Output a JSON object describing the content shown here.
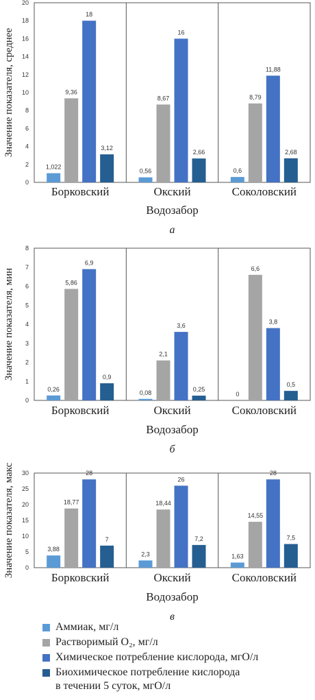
{
  "colors": [
    "#5b9bd5",
    "#a5a5a5",
    "#4472c4",
    "#255e91"
  ],
  "legend": [
    {
      "label": "Аммиак, мг/л",
      "color": "#5b9bd5"
    },
    {
      "label": "Растворимый O₂, мг/л",
      "color": "#a5a5a5"
    },
    {
      "label": "Химическое потребление кислорода, мгО/л",
      "color": "#4472c4"
    },
    {
      "label": "Биохимическое потребление кислорода\nв течении 5 суток, мгО/л",
      "color": "#255e91"
    }
  ],
  "chart_data": [
    {
      "type": "bar",
      "panel_letter": "а",
      "ylabel": "Значение показателя, среднее",
      "xlabel": "Водозабор",
      "categories": [
        "Борковский",
        "Окский",
        "Соколовский"
      ],
      "ylim": [
        0,
        20
      ],
      "yticks": [
        0,
        2,
        4,
        6,
        8,
        10,
        12,
        14,
        16,
        18,
        20
      ],
      "grid": false,
      "series": [
        {
          "values": [
            1.022,
            0.56,
            0.6
          ],
          "labels": [
            "1,022",
            "0,56",
            "0,6"
          ]
        },
        {
          "values": [
            9.36,
            8.67,
            8.79
          ],
          "labels": [
            "9,36",
            "8,67",
            "8,79"
          ]
        },
        {
          "values": [
            18,
            16,
            11.88
          ],
          "labels": [
            "18",
            "16",
            "11,88"
          ]
        },
        {
          "values": [
            3.12,
            2.66,
            2.68
          ],
          "labels": [
            "3,12",
            "2,66",
            "2,68"
          ]
        }
      ]
    },
    {
      "type": "bar",
      "panel_letter": "б",
      "ylabel": "Значение показателя, мин",
      "xlabel": "Водозабор",
      "categories": [
        "Борковский",
        "Окский",
        "Соколовский"
      ],
      "ylim": [
        0,
        8
      ],
      "yticks": [
        0,
        1,
        2,
        3,
        4,
        5,
        6,
        7,
        8
      ],
      "grid": false,
      "series": [
        {
          "values": [
            0.26,
            0.08,
            0
          ],
          "labels": [
            "0,26",
            "0,08",
            "0"
          ]
        },
        {
          "values": [
            5.86,
            2.1,
            6.6
          ],
          "labels": [
            "5,86",
            "2,1",
            "6,6"
          ]
        },
        {
          "values": [
            6.9,
            3.6,
            3.8
          ],
          "labels": [
            "6,9",
            "3,6",
            "3,8"
          ]
        },
        {
          "values": [
            0.9,
            0.25,
            0.5
          ],
          "labels": [
            "0,9",
            "0,25",
            "0,5"
          ]
        }
      ]
    },
    {
      "type": "bar",
      "panel_letter": "в",
      "ylabel": "Значение показателя, макс",
      "xlabel": "Водозабор",
      "categories": [
        "Борковский",
        "Окский",
        "Соколовский"
      ],
      "ylim": [
        0,
        30
      ],
      "yticks": [
        0,
        5,
        10,
        15,
        20,
        25,
        30
      ],
      "grid": false,
      "series": [
        {
          "values": [
            3.88,
            2.3,
            1.63
          ],
          "labels": [
            "3,88",
            "2,3",
            "1,63"
          ]
        },
        {
          "values": [
            18.77,
            18.44,
            14.55
          ],
          "labels": [
            "18,77",
            "18,44",
            "14,55"
          ]
        },
        {
          "values": [
            28,
            26,
            28
          ],
          "labels": [
            "28",
            "26",
            "28"
          ]
        },
        {
          "values": [
            7,
            7.2,
            7.5
          ],
          "labels": [
            "7",
            "7,2",
            "7,5"
          ]
        }
      ]
    }
  ]
}
